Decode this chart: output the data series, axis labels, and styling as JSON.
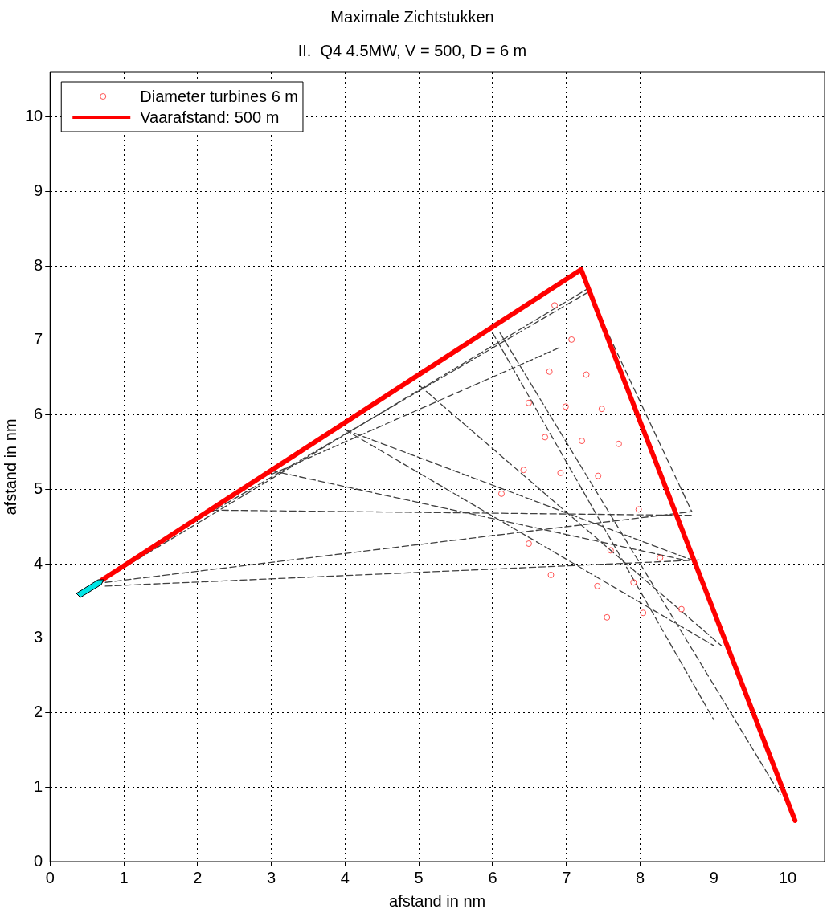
{
  "chart_data": {
    "type": "scatter",
    "title": "Maximale Zichtstukken",
    "subtitle": "II.  Q4 4.5MW, V = 500, D = 6 m",
    "xlabel": "afstand in nm",
    "ylabel": "afstand in nm",
    "xlim": [
      0,
      10.5
    ],
    "ylim": [
      0,
      10.6
    ],
    "xticks": [
      0,
      1,
      2,
      3,
      4,
      5,
      6,
      7,
      8,
      9,
      10
    ],
    "yticks": [
      0,
      1,
      2,
      3,
      4,
      5,
      6,
      7,
      8,
      9,
      10
    ],
    "grid": true,
    "legend": "top left",
    "series": [
      {
        "name": "Diameter turbines 6 m",
        "type": "scatter",
        "marker": "circle",
        "color": "#ff5050",
        "x": [
          6.84,
          7.07,
          6.77,
          7.27,
          6.49,
          6.99,
          7.48,
          6.71,
          7.21,
          7.71,
          6.42,
          6.92,
          7.43,
          6.12,
          7.98,
          6.49,
          7.6,
          8.27,
          6.79,
          7.91,
          7.42,
          8.04,
          8.56,
          7.55
        ],
        "values": [
          7.47,
          7.01,
          6.58,
          6.54,
          6.16,
          6.11,
          6.08,
          5.7,
          5.65,
          5.61,
          5.26,
          5.22,
          5.18,
          4.94,
          4.73,
          4.27,
          4.18,
          4.08,
          3.85,
          3.75,
          3.7,
          3.34,
          3.39,
          3.28
        ]
      },
      {
        "name": "Vaarafstand: 500 m",
        "type": "line",
        "marker": "none",
        "line_style": "solid",
        "color": "#ff0000",
        "x": [
          0.7,
          7.2,
          10.1
        ],
        "values": [
          3.78,
          7.95,
          0.55
        ]
      },
      {
        "type": "line",
        "marker": "none",
        "line_style": "dashed",
        "color": "#404040",
        "x": [
          0.75,
          8.8
        ],
        "values": [
          3.7,
          4.05
        ]
      },
      {
        "type": "line",
        "marker": "none",
        "line_style": "dashed",
        "color": "#404040",
        "x": [
          0.75,
          8.7
        ],
        "values": [
          3.75,
          4.7
        ]
      },
      {
        "type": "line",
        "marker": "none",
        "line_style": "dashed",
        "color": "#404040",
        "x": [
          0.75,
          7.3
        ],
        "values": [
          3.8,
          7.7
        ]
      },
      {
        "type": "line",
        "marker": "none",
        "line_style": "dashed",
        "color": "#404040",
        "x": [
          2.2,
          8.7
        ],
        "values": [
          4.72,
          4.65
        ]
      },
      {
        "type": "line",
        "marker": "none",
        "line_style": "dashed",
        "color": "#404040",
        "x": [
          3.0,
          8.6
        ],
        "values": [
          5.25,
          4.05
        ]
      },
      {
        "type": "line",
        "marker": "none",
        "line_style": "dashed",
        "color": "#404040",
        "x": [
          4.0,
          8.7
        ],
        "values": [
          5.8,
          4.05
        ]
      },
      {
        "type": "line",
        "marker": "none",
        "line_style": "dashed",
        "color": "#404040",
        "x": [
          4.0,
          9.0
        ],
        "values": [
          5.8,
          2.9
        ]
      },
      {
        "type": "line",
        "marker": "none",
        "line_style": "dashed",
        "color": "#404040",
        "x": [
          5.0,
          9.1
        ],
        "values": [
          6.4,
          2.9
        ]
      },
      {
        "type": "line",
        "marker": "none",
        "line_style": "dashed",
        "color": "#404040",
        "x": [
          6.0,
          9.0
        ],
        "values": [
          7.1,
          1.9
        ]
      },
      {
        "type": "line",
        "marker": "none",
        "line_style": "dashed",
        "color": "#404040",
        "x": [
          6.1,
          9.9
        ],
        "values": [
          7.1,
          0.9
        ]
      },
      {
        "type": "line",
        "marker": "none",
        "line_style": "dashed",
        "color": "#404040",
        "x": [
          7.3,
          2.2
        ],
        "values": [
          7.65,
          4.7
        ]
      },
      {
        "type": "line",
        "marker": "none",
        "line_style": "dashed",
        "color": "#404040",
        "x": [
          6.9,
          3.0
        ],
        "values": [
          6.9,
          5.2
        ]
      },
      {
        "type": "line",
        "marker": "none",
        "line_style": "dashed",
        "color": "#404040",
        "x": [
          7.3,
          8.7
        ],
        "values": [
          7.65,
          4.7
        ]
      }
    ]
  }
}
